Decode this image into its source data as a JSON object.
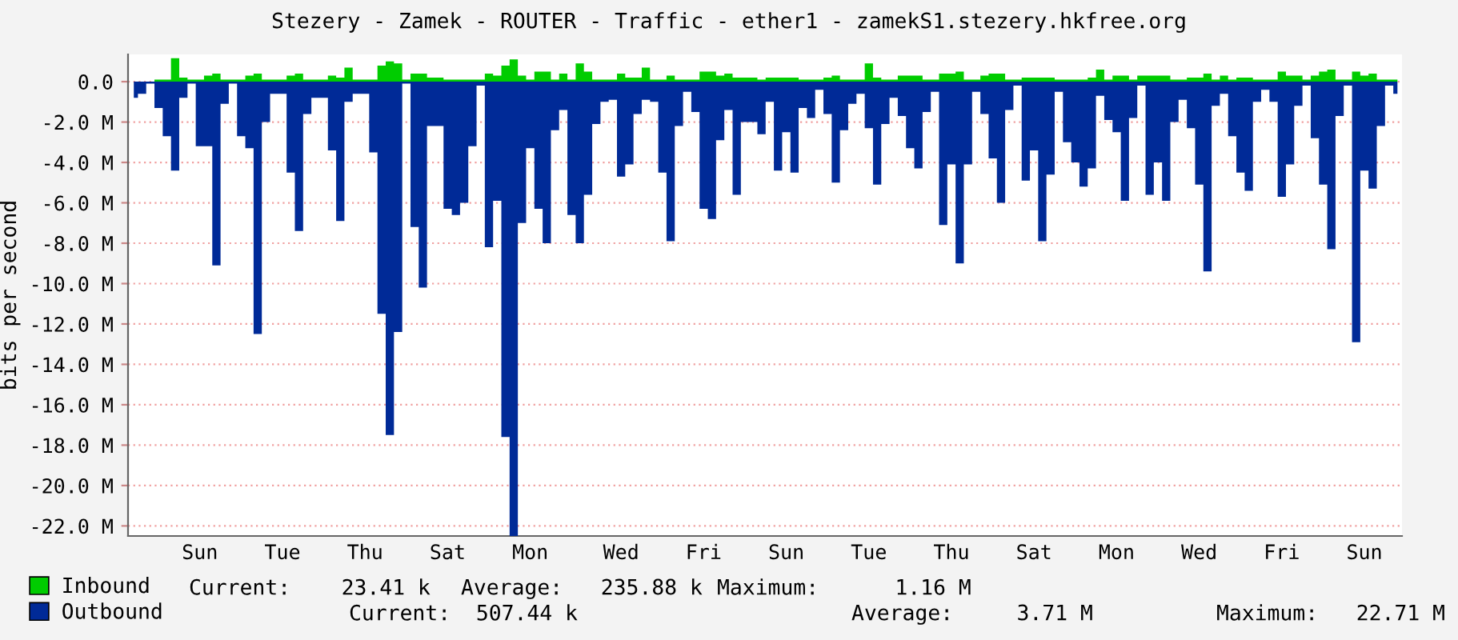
{
  "chart_data": {
    "type": "area",
    "title": "Stezery - Zamek - ROUTER - Traffic - ether1 - zamekS1.stezery.hkfree.org",
    "ylabel": "bits per second",
    "categories": [
      null,
      null,
      null,
      null,
      null,
      null,
      null,
      null,
      "Sun",
      null,
      null,
      null,
      null,
      null,
      null,
      null,
      null,
      null,
      "Tue",
      null,
      null,
      null,
      null,
      null,
      null,
      null,
      null,
      null,
      "Thu",
      null,
      null,
      null,
      null,
      null,
      null,
      null,
      null,
      null,
      "Sat",
      null,
      null,
      null,
      null,
      null,
      null,
      null,
      null,
      null,
      "Mon",
      null,
      null,
      null,
      null,
      null,
      null,
      null,
      null,
      null,
      null,
      "Wed",
      null,
      null,
      null,
      null,
      null,
      null,
      null,
      null,
      null,
      "Fri",
      null,
      null,
      null,
      null,
      null,
      null,
      null,
      null,
      null,
      "Sun",
      null,
      null,
      null,
      null,
      null,
      null,
      null,
      null,
      null,
      "Tue",
      null,
      null,
      null,
      null,
      null,
      null,
      null,
      null,
      null,
      "Thu",
      null,
      null,
      null,
      null,
      null,
      null,
      null,
      null,
      null,
      "Sat",
      null,
      null,
      null,
      null,
      null,
      null,
      null,
      null,
      null,
      "Mon",
      null,
      null,
      null,
      null,
      null,
      null,
      null,
      null,
      null,
      "Wed",
      null,
      null,
      null,
      null,
      null,
      null,
      null,
      null,
      null,
      "Fri",
      null,
      null,
      null,
      null,
      null,
      null,
      null,
      null,
      null,
      "Sun",
      null,
      null,
      null,
      null
    ],
    "ylim": [
      -22.5,
      1.35
    ],
    "yticks": [
      {
        "value": 0,
        "label": "0.0"
      },
      {
        "value": -2,
        "label": "-2.0 M"
      },
      {
        "value": -4,
        "label": "-4.0 M"
      },
      {
        "value": -6,
        "label": "-6.0 M"
      },
      {
        "value": -8,
        "label": "-8.0 M"
      },
      {
        "value": -10,
        "label": "-10.0 M"
      },
      {
        "value": -12,
        "label": "-12.0 M"
      },
      {
        "value": -14,
        "label": "-14.0 M"
      },
      {
        "value": -16,
        "label": "-16.0 M"
      },
      {
        "value": -18,
        "label": "-18.0 M"
      },
      {
        "value": -20,
        "label": "-20.0 M"
      },
      {
        "value": -22,
        "label": "-22.0 M"
      }
    ],
    "grid": "y",
    "legend": "bottom left",
    "series": [
      {
        "name": "Inbound",
        "color": "#00cc00",
        "values": [
          0.0,
          0.0,
          0.0,
          0.1,
          0.1,
          1.16,
          0.2,
          0.1,
          0.1,
          0.3,
          0.4,
          0.1,
          0.1,
          0.1,
          0.3,
          0.4,
          0.1,
          0.1,
          0.1,
          0.3,
          0.4,
          0.1,
          0.1,
          0.1,
          0.3,
          0.2,
          0.7,
          0.1,
          0.1,
          0.1,
          0.8,
          1.0,
          0.9,
          0.1,
          0.4,
          0.4,
          0.2,
          0.2,
          0.1,
          0.1,
          0.1,
          0.1,
          0.1,
          0.4,
          0.3,
          0.8,
          1.1,
          0.3,
          0.1,
          0.5,
          0.5,
          0.1,
          0.4,
          0.1,
          0.9,
          0.5,
          0.1,
          0.1,
          0.1,
          0.4,
          0.2,
          0.2,
          0.7,
          0.1,
          0.1,
          0.3,
          0.1,
          0.1,
          0.1,
          0.5,
          0.5,
          0.3,
          0.4,
          0.2,
          0.2,
          0.2,
          0.1,
          0.2,
          0.2,
          0.2,
          0.2,
          0.1,
          0.1,
          0.1,
          0.2,
          0.3,
          0.1,
          0.1,
          0.1,
          0.9,
          0.2,
          0.1,
          0.1,
          0.3,
          0.3,
          0.3,
          0.1,
          0.1,
          0.4,
          0.4,
          0.5,
          0.1,
          0.1,
          0.3,
          0.4,
          0.4,
          0.1,
          0.1,
          0.2,
          0.2,
          0.2,
          0.2,
          0.1,
          0.1,
          0.1,
          0.1,
          0.2,
          0.6,
          0.1,
          0.3,
          0.3,
          0.1,
          0.3,
          0.3,
          0.3,
          0.3,
          0.1,
          0.1,
          0.2,
          0.2,
          0.4,
          0.1,
          0.3,
          0.1,
          0.2,
          0.2,
          0.1,
          0.1,
          0.1,
          0.5,
          0.3,
          0.3,
          0.1,
          0.3,
          0.5,
          0.6,
          0.1,
          0.1,
          0.5,
          0.3,
          0.4,
          0.1,
          0.1,
          0.1
        ]
      },
      {
        "name": "Outbound",
        "color": "#002a97",
        "values": [
          -0.8,
          -0.6,
          -0.1,
          -1.3,
          -2.7,
          -4.4,
          -0.8,
          -0.1,
          -3.2,
          -3.2,
          -9.1,
          -1.1,
          -0.1,
          -2.7,
          -3.3,
          -12.5,
          -2.0,
          -0.6,
          -0.6,
          -4.5,
          -7.4,
          -1.6,
          -0.8,
          -0.8,
          -3.4,
          -6.9,
          -1.0,
          -0.6,
          -0.6,
          -3.5,
          -11.5,
          -17.5,
          -12.4,
          -0.1,
          -7.2,
          -10.2,
          -2.2,
          -2.2,
          -6.3,
          -6.6,
          -6.0,
          -3.2,
          -0.2,
          -8.2,
          -5.9,
          -17.6,
          -22.5,
          -7.0,
          -3.3,
          -6.3,
          -8.0,
          -2.4,
          -1.4,
          -6.6,
          -8.0,
          -5.6,
          -2.1,
          -1.0,
          -0.9,
          -4.7,
          -4.1,
          -1.6,
          -0.9,
          -1.0,
          -4.5,
          -7.9,
          -2.2,
          -0.5,
          -1.5,
          -6.3,
          -6.8,
          -2.9,
          -1.4,
          -5.6,
          -2.0,
          -2.0,
          -2.6,
          -1.0,
          -4.4,
          -2.5,
          -4.5,
          -1.3,
          -1.8,
          -0.4,
          -1.6,
          -5.0,
          -2.4,
          -1.1,
          -0.6,
          -2.3,
          -5.1,
          -2.1,
          -0.8,
          -1.7,
          -3.3,
          -4.3,
          -1.5,
          -0.5,
          -7.1,
          -4.1,
          -9.0,
          -4.1,
          -0.5,
          -1.6,
          -3.8,
          -6.0,
          -1.4,
          -0.2,
          -4.9,
          -3.4,
          -7.9,
          -4.6,
          -0.5,
          -3.0,
          -4.0,
          -5.2,
          -4.3,
          -0.7,
          -1.9,
          -2.5,
          -5.9,
          -1.8,
          -0.2,
          -5.6,
          -4.0,
          -5.9,
          -2.0,
          -0.9,
          -2.3,
          -5.1,
          -9.4,
          -1.2,
          -0.6,
          -2.7,
          -4.5,
          -5.4,
          -1.0,
          -0.4,
          -1.0,
          -5.7,
          -4.1,
          -1.2,
          -0.2,
          -2.8,
          -5.1,
          -8.3,
          -1.7,
          -0.2,
          -12.9,
          -4.4,
          -5.3,
          -2.2,
          -0.2,
          -0.6
        ]
      }
    ],
    "annotations": [
      "Current:    23.41 k",
      "Average:   235.88 k",
      "Maximum:      1.16 M",
      "Current:  507.44 k",
      "Average:     3.71 M",
      "Maximum:   22.71 M"
    ]
  }
}
